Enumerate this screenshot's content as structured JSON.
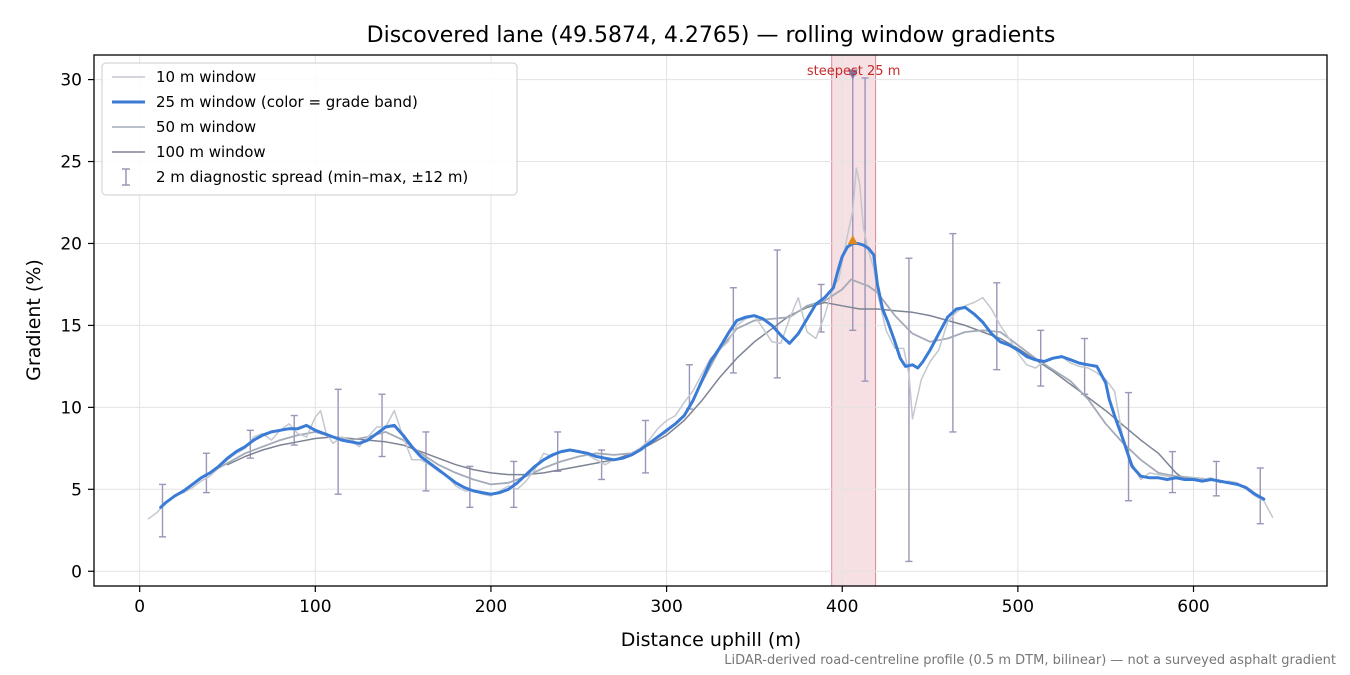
{
  "chart_data": {
    "type": "line",
    "title": "Discovered lane (49.5874, 4.2765) — rolling window gradients",
    "xlabel": "Distance uphill (m)",
    "ylabel": "Gradient (%)",
    "footnote": "LiDAR-derived road-centreline profile (0.5 m DTM, bilinear) — not a surveyed asphalt gradient",
    "xlim": [
      -26,
      676
    ],
    "ylim": [
      -0.9,
      31.5
    ],
    "xticks": [
      0,
      100,
      200,
      300,
      400,
      500,
      600
    ],
    "yticks": [
      0,
      5,
      10,
      15,
      20,
      25,
      30
    ],
    "grid": true,
    "legend_position": "upper-left",
    "highlight": {
      "x_start": 394,
      "x_end": 419,
      "label": "steepest 25 m",
      "peak_x": 406,
      "peak_y": 20.2,
      "marker_y": 30.3
    },
    "series": [
      {
        "name": "10 m window",
        "color": "#c3c7cf",
        "x": [
          5,
          10,
          15,
          20,
          25,
          30,
          35,
          40,
          45,
          50,
          55,
          60,
          65,
          70,
          75,
          80,
          85,
          90,
          95,
          100,
          103,
          106,
          110,
          115,
          120,
          125,
          130,
          135,
          140,
          145,
          150,
          155,
          160,
          165,
          170,
          175,
          180,
          185,
          190,
          195,
          200,
          205,
          210,
          215,
          220,
          225,
          230,
          235,
          240,
          245,
          250,
          255,
          260,
          265,
          270,
          275,
          280,
          285,
          290,
          295,
          300,
          305,
          310,
          315,
          320,
          325,
          330,
          335,
          340,
          345,
          350,
          355,
          360,
          365,
          370,
          375,
          380,
          385,
          390,
          395,
          398,
          400,
          403,
          406,
          408,
          410,
          412,
          415,
          418,
          420,
          425,
          430,
          435,
          438,
          440,
          445,
          450,
          455,
          460,
          465,
          470,
          475,
          480,
          485,
          490,
          495,
          500,
          505,
          510,
          515,
          520,
          525,
          530,
          535,
          540,
          545,
          550,
          555,
          560,
          565,
          570,
          575,
          580,
          585,
          590,
          595,
          600,
          605,
          610,
          615,
          620,
          625,
          630,
          635,
          640,
          645
        ],
        "y": [
          3.2,
          3.6,
          4.2,
          4.6,
          4.8,
          5.1,
          5.5,
          5.8,
          6.3,
          6.8,
          7.2,
          7.5,
          8.2,
          8.4,
          8.0,
          8.6,
          9.0,
          8.4,
          8.2,
          9.4,
          9.8,
          8.5,
          7.8,
          8.2,
          8.0,
          7.6,
          8.2,
          8.8,
          8.8,
          9.8,
          8.2,
          6.8,
          6.8,
          6.5,
          6.1,
          5.8,
          5.2,
          4.9,
          4.9,
          4.7,
          4.6,
          4.9,
          5.2,
          5.0,
          5.5,
          6.2,
          7.2,
          7.0,
          7.3,
          7.4,
          7.3,
          7.1,
          6.8,
          6.5,
          6.8,
          6.9,
          7.2,
          7.5,
          8.0,
          8.7,
          9.2,
          9.5,
          10.3,
          11.0,
          12.0,
          13.0,
          13.5,
          14.0,
          15.0,
          15.4,
          15.6,
          14.8,
          14.0,
          13.9,
          15.4,
          16.7,
          14.6,
          14.2,
          15.6,
          17.4,
          17.8,
          18.9,
          20.5,
          22.0,
          24.6,
          23.6,
          21.0,
          19.5,
          18.5,
          17.0,
          14.7,
          13.6,
          13.6,
          12.0,
          9.3,
          11.7,
          12.8,
          13.5,
          15.2,
          15.8,
          16.2,
          16.4,
          16.7,
          16.0,
          15.0,
          14.2,
          13.3,
          12.6,
          12.4,
          12.8,
          13.0,
          13.1,
          12.7,
          12.5,
          12.4,
          12.1,
          11.7,
          11.0,
          8.0,
          6.6,
          5.6,
          6.0,
          5.9,
          5.8,
          5.7,
          5.6,
          5.7,
          5.6,
          5.7,
          5.4,
          5.5,
          5.4,
          5.0,
          4.6,
          4.3,
          3.3
        ]
      },
      {
        "name": "25 m window (color = grade band)",
        "color": "#3a7bd5",
        "x": [
          12,
          15,
          20,
          25,
          30,
          35,
          40,
          45,
          50,
          55,
          60,
          65,
          70,
          75,
          80,
          85,
          90,
          95,
          100,
          105,
          110,
          115,
          120,
          125,
          130,
          135,
          140,
          145,
          150,
          155,
          160,
          165,
          170,
          175,
          180,
          185,
          190,
          195,
          200,
          205,
          210,
          215,
          220,
          225,
          230,
          235,
          240,
          245,
          250,
          255,
          260,
          265,
          270,
          275,
          280,
          285,
          290,
          295,
          300,
          305,
          310,
          315,
          320,
          325,
          330,
          335,
          340,
          345,
          350,
          355,
          360,
          365,
          370,
          375,
          380,
          385,
          390,
          395,
          398,
          400,
          403,
          406,
          409,
          412,
          415,
          418,
          420,
          423,
          426,
          430,
          433,
          436,
          440,
          443,
          446,
          450,
          455,
          460,
          465,
          470,
          475,
          480,
          485,
          490,
          495,
          500,
          505,
          510,
          515,
          520,
          525,
          530,
          535,
          540,
          545,
          550,
          552,
          555,
          560,
          565,
          570,
          575,
          580,
          585,
          590,
          595,
          600,
          605,
          610,
          615,
          620,
          625,
          630,
          635,
          640
        ],
        "y": [
          3.9,
          4.2,
          4.6,
          4.9,
          5.3,
          5.7,
          6.0,
          6.4,
          6.9,
          7.3,
          7.6,
          8.0,
          8.3,
          8.5,
          8.6,
          8.7,
          8.7,
          8.9,
          8.6,
          8.4,
          8.2,
          8.0,
          7.9,
          7.8,
          8.0,
          8.4,
          8.8,
          8.9,
          8.3,
          7.6,
          7.0,
          6.6,
          6.2,
          5.8,
          5.4,
          5.1,
          4.9,
          4.8,
          4.7,
          4.8,
          5.0,
          5.4,
          5.9,
          6.4,
          6.8,
          7.1,
          7.3,
          7.4,
          7.3,
          7.2,
          7.0,
          6.9,
          6.8,
          6.9,
          7.1,
          7.4,
          7.8,
          8.2,
          8.6,
          9.0,
          9.5,
          10.4,
          11.6,
          12.8,
          13.6,
          14.5,
          15.3,
          15.5,
          15.6,
          15.4,
          15.0,
          14.4,
          13.9,
          14.5,
          15.4,
          16.3,
          16.7,
          17.3,
          18.5,
          19.2,
          19.8,
          20.0,
          20.0,
          19.9,
          19.7,
          19.3,
          17.5,
          16.0,
          15.2,
          14.0,
          13.0,
          12.5,
          12.6,
          12.4,
          12.8,
          13.5,
          14.5,
          15.5,
          16.0,
          16.1,
          15.7,
          15.2,
          14.5,
          14.0,
          13.8,
          13.5,
          13.1,
          12.9,
          12.8,
          13.0,
          13.1,
          12.9,
          12.7,
          12.6,
          12.5,
          11.5,
          10.5,
          9.5,
          8.0,
          6.4,
          5.8,
          5.7,
          5.7,
          5.6,
          5.7,
          5.6,
          5.6,
          5.5,
          5.6,
          5.5,
          5.4,
          5.3,
          5.1,
          4.7,
          4.4
        ]
      },
      {
        "name": "50 m window",
        "color": "#a4abb8",
        "x": [
          25,
          30,
          40,
          50,
          60,
          70,
          80,
          90,
          100,
          110,
          120,
          130,
          140,
          150,
          160,
          170,
          180,
          190,
          200,
          210,
          220,
          230,
          240,
          250,
          260,
          270,
          280,
          290,
          300,
          310,
          320,
          330,
          340,
          350,
          360,
          370,
          380,
          390,
          400,
          405,
          410,
          415,
          420,
          430,
          440,
          450,
          460,
          470,
          480,
          490,
          500,
          510,
          520,
          530,
          540,
          550,
          560,
          570,
          580,
          590,
          600,
          610,
          620
        ],
        "y": [
          4.8,
          5.3,
          6.0,
          6.6,
          7.2,
          7.6,
          8.0,
          8.3,
          8.5,
          8.2,
          8.0,
          8.2,
          8.5,
          8.0,
          7.2,
          6.5,
          6.0,
          5.6,
          5.3,
          5.4,
          5.8,
          6.3,
          6.7,
          7.0,
          7.2,
          7.1,
          7.2,
          7.8,
          8.5,
          9.5,
          11.5,
          13.5,
          14.8,
          15.3,
          15.4,
          15.5,
          16.2,
          16.5,
          17.2,
          17.8,
          17.6,
          17.4,
          17.0,
          15.6,
          14.5,
          14.0,
          14.2,
          14.6,
          14.7,
          14.6,
          13.8,
          13.0,
          12.3,
          11.6,
          10.5,
          9.0,
          7.8,
          6.8,
          6.0,
          5.8,
          5.7,
          5.6,
          5.4
        ]
      },
      {
        "name": "100 m window",
        "color": "#7d8494",
        "x": [
          50,
          60,
          70,
          80,
          90,
          100,
          110,
          120,
          130,
          140,
          150,
          160,
          170,
          180,
          190,
          200,
          210,
          220,
          230,
          240,
          250,
          260,
          270,
          280,
          290,
          300,
          310,
          320,
          330,
          340,
          350,
          360,
          370,
          380,
          390,
          400,
          410,
          420,
          430,
          440,
          450,
          460,
          470,
          480,
          490,
          500,
          510,
          520,
          530,
          540,
          550,
          560,
          570,
          580,
          590,
          595
        ],
        "y": [
          6.5,
          7.0,
          7.4,
          7.7,
          7.9,
          8.1,
          8.2,
          8.1,
          8.0,
          7.9,
          7.7,
          7.3,
          6.9,
          6.5,
          6.2,
          6.0,
          5.9,
          5.9,
          6.0,
          6.2,
          6.4,
          6.6,
          6.8,
          7.2,
          7.7,
          8.3,
          9.2,
          10.4,
          11.8,
          13.0,
          14.0,
          14.8,
          15.6,
          16.1,
          16.4,
          16.2,
          16.0,
          16.0,
          15.9,
          15.8,
          15.6,
          15.3,
          15.0,
          14.6,
          14.2,
          13.6,
          12.9,
          12.2,
          11.4,
          10.6,
          9.8,
          8.9,
          8.0,
          7.2,
          6.0,
          5.6
        ]
      },
      {
        "name": "2 m diagnostic spread (min–max, ±12 m)",
        "color": "#9b95b8",
        "type": "errorbar",
        "x": [
          13,
          38,
          63,
          88,
          113,
          138,
          163,
          188,
          213,
          238,
          263,
          288,
          313,
          338,
          363,
          388,
          406,
          413,
          438,
          463,
          488,
          513,
          538,
          563,
          588,
          613,
          638
        ],
        "low": [
          2.1,
          4.8,
          6.9,
          7.7,
          4.7,
          7.0,
          4.9,
          3.9,
          3.9,
          6.1,
          5.6,
          6.0,
          9.9,
          12.1,
          11.8,
          14.6,
          14.7,
          11.6,
          0.6,
          8.5,
          12.3,
          11.3,
          10.8,
          4.3,
          4.8,
          4.6,
          2.9
        ],
        "high": [
          5.3,
          7.2,
          8.6,
          9.5,
          11.1,
          10.8,
          8.5,
          6.4,
          6.7,
          8.5,
          7.4,
          9.2,
          12.6,
          17.3,
          19.6,
          17.5,
          30.3,
          30.1,
          19.1,
          20.6,
          17.6,
          14.7,
          14.2,
          10.9,
          7.3,
          6.7,
          6.3
        ]
      }
    ]
  }
}
